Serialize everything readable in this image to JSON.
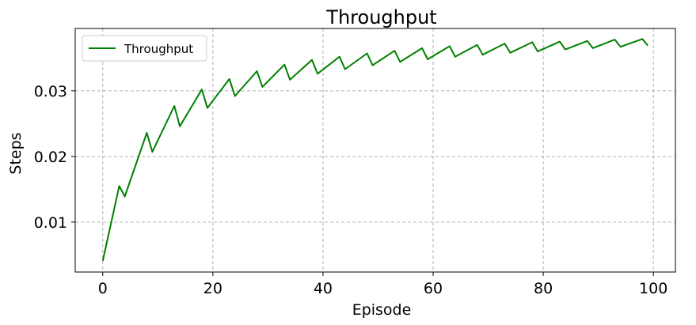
{
  "chart_data": {
    "type": "line",
    "title": "Throughput",
    "xlabel": "Episode",
    "ylabel": "Steps",
    "xlim": [
      -5,
      104
    ],
    "ylim": [
      0.0024,
      0.0395
    ],
    "xticks": [
      0,
      20,
      40,
      60,
      80,
      100
    ],
    "yticks": [
      0.01,
      0.02,
      0.03
    ],
    "xtick_labels": [
      "0",
      "20",
      "40",
      "60",
      "80",
      "100"
    ],
    "ytick_labels": [
      "0.01",
      "0.02",
      "0.03"
    ],
    "grid": true,
    "legend_position": "top-left",
    "series": [
      {
        "name": "Throughput",
        "color": "#008000",
        "x": [
          0,
          3,
          4,
          8,
          9,
          13,
          14,
          18,
          19,
          23,
          24,
          28,
          29,
          33,
          34,
          38,
          39,
          43,
          44,
          48,
          49,
          53,
          54,
          58,
          59,
          63,
          64,
          68,
          69,
          73,
          74,
          78,
          79,
          83,
          84,
          88,
          89,
          93,
          94,
          98,
          99
        ],
        "y": [
          0.0041,
          0.0155,
          0.0139,
          0.0236,
          0.0207,
          0.0277,
          0.0246,
          0.0302,
          0.0274,
          0.0318,
          0.0292,
          0.033,
          0.0306,
          0.034,
          0.0317,
          0.0347,
          0.0326,
          0.0352,
          0.0333,
          0.0357,
          0.0339,
          0.0361,
          0.0344,
          0.0365,
          0.0348,
          0.0368,
          0.0352,
          0.037,
          0.0355,
          0.0372,
          0.0358,
          0.0374,
          0.036,
          0.0375,
          0.0363,
          0.0376,
          0.0365,
          0.0378,
          0.0367,
          0.0379,
          0.0369
        ]
      }
    ]
  }
}
